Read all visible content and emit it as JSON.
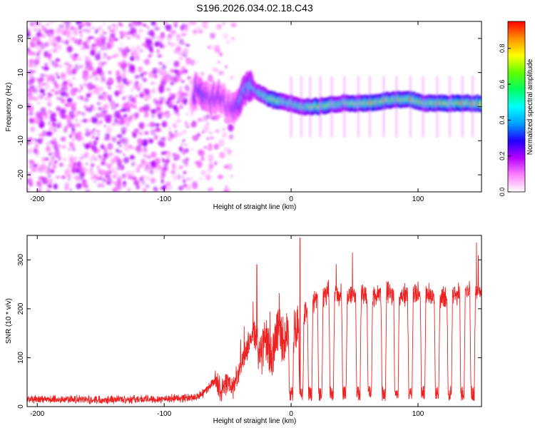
{
  "figure_title": "S196.2026.034.02.18.C43",
  "chart_data": [
    {
      "type": "heatmap",
      "title": "S196.2026.034.02.18.C43",
      "xlabel": "Height of straight line (km)",
      "ylabel": "Frequency (Hz)",
      "xlim": [
        -208,
        150
      ],
      "ylim": [
        -25,
        25
      ],
      "xticks": [
        -200,
        -100,
        0,
        100
      ],
      "xtick_labels": [
        "-200",
        "-100",
        "0",
        "100"
      ],
      "yticks": [
        -20,
        -10,
        0,
        10,
        20
      ],
      "ytick_labels": [
        "-20",
        "-10",
        "0",
        "10",
        "20"
      ],
      "colorbar": {
        "label": "Normalized spectral amplitude",
        "range": [
          0,
          0.95
        ],
        "ticks": [
          0,
          0.2,
          0.4,
          0.6,
          0.8
        ],
        "tick_labels": [
          "0.0",
          "0.2",
          "0.4",
          "0.6",
          "0.8"
        ],
        "colors": [
          "#ffffff",
          "#ff80ff",
          "#b400ff",
          "#2000ff",
          "#00a0ff",
          "#00ffff",
          "#00ff60",
          "#60ff00",
          "#ffff00",
          "#ff9000",
          "#ff0000"
        ]
      },
      "ridge": {
        "x": [
          -208,
          -80,
          -75,
          -65,
          -55,
          -50,
          -45,
          -38,
          -33,
          -25,
          -15,
          0,
          10,
          20,
          40,
          60,
          80,
          95,
          105,
          120,
          135,
          150
        ],
        "frequency": [
          0,
          0,
          5,
          2,
          3,
          0,
          -1,
          4,
          6,
          4,
          2,
          1,
          0,
          0,
          1,
          1,
          2,
          2,
          1,
          1,
          1,
          1
        ],
        "amplitude": [
          0.0,
          0.0,
          0.35,
          0.3,
          0.3,
          0.25,
          0.3,
          0.45,
          0.5,
          0.55,
          0.75,
          0.6,
          0.65,
          0.8,
          0.65,
          0.85,
          0.8,
          0.9,
          0.75,
          0.8,
          0.8,
          0.9
        ]
      },
      "noise_region": {
        "x_range": [
          -208,
          -45
        ],
        "frequency_range": [
          -25,
          25
        ],
        "amplitude": 0.15
      }
    },
    {
      "type": "line",
      "xlabel": "Height of straight line (km)",
      "ylabel": "SNR (10 * v/v)",
      "xlim": [
        -208,
        150
      ],
      "ylim": [
        0,
        350
      ],
      "xticks": [
        -200,
        -100,
        0,
        100
      ],
      "xtick_labels": [
        "-200",
        "-100",
        "0",
        "100"
      ],
      "yticks": [
        0,
        100,
        200,
        300
      ],
      "ytick_labels": [
        "0",
        "100",
        "200",
        "300"
      ],
      "line_color": "#ee2222",
      "series": [
        {
          "name": "SNR",
          "x": [
            -208,
            -200,
            -180,
            -160,
            -140,
            -120,
            -100,
            -90,
            -80,
            -75,
            -70,
            -65,
            -60,
            -55,
            -50,
            -45,
            -40,
            -35,
            -30,
            -25,
            -20,
            -15,
            -10,
            -5,
            0,
            5,
            10,
            15,
            20,
            30,
            40,
            50,
            60,
            70,
            80,
            90,
            100,
            110,
            120,
            130,
            140,
            150
          ],
          "y": [
            15,
            14,
            15,
            14,
            15,
            15,
            16,
            17,
            18,
            20,
            25,
            40,
            55,
            30,
            50,
            40,
            80,
            120,
            150,
            110,
            130,
            100,
            170,
            130,
            180,
            170,
            190,
            210,
            220,
            230,
            225,
            230,
            225,
            230,
            230,
            225,
            235,
            230,
            220,
            230,
            235,
            240
          ]
        }
      ],
      "dropouts_x": [
        0,
        8,
        15,
        23,
        32,
        42,
        53,
        62,
        73,
        83,
        94,
        104,
        115,
        125,
        135,
        143
      ],
      "dropout_level": 12,
      "peaks": [
        {
          "x": -27,
          "y": 290
        },
        {
          "x": 7,
          "y": 345
        },
        {
          "x": 146,
          "y": 335
        }
      ]
    }
  ]
}
